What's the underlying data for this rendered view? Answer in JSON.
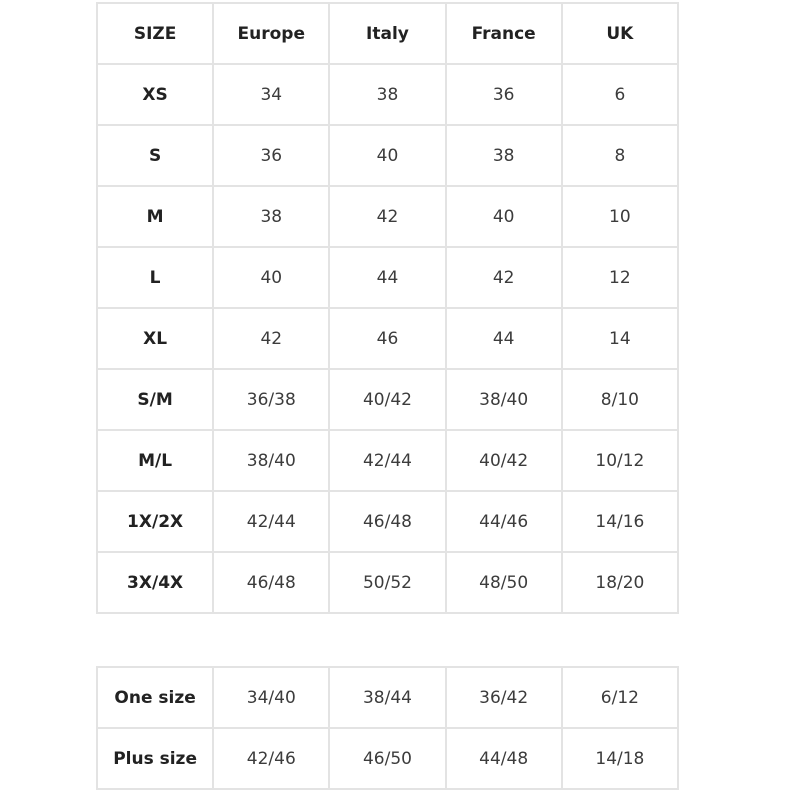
{
  "size_table": {
    "headers": [
      "SIZE",
      "Europe",
      "Italy",
      "France",
      "UK"
    ],
    "rows": [
      [
        "XS",
        "34",
        "38",
        "36",
        "6"
      ],
      [
        "S",
        "36",
        "40",
        "38",
        "8"
      ],
      [
        "M",
        "38",
        "42",
        "40",
        "10"
      ],
      [
        "L",
        "40",
        "44",
        "42",
        "12"
      ],
      [
        "XL",
        "42",
        "46",
        "44",
        "14"
      ],
      [
        "S/M",
        "36/38",
        "40/42",
        "38/40",
        "8/10"
      ],
      [
        "M/L",
        "38/40",
        "42/44",
        "40/42",
        "10/12"
      ],
      [
        "1X/2X",
        "42/44",
        "46/48",
        "44/46",
        "14/16"
      ],
      [
        "3X/4X",
        "46/48",
        "50/52",
        "48/50",
        "18/20"
      ]
    ]
  },
  "special_table": {
    "rows": [
      [
        "One size",
        "34/40",
        "38/44",
        "36/42",
        "6/12"
      ],
      [
        "Plus size",
        "42/46",
        "46/50",
        "44/48",
        "14/18"
      ]
    ]
  },
  "colors": {
    "border": "#e3e3e3",
    "header_text": "#222222",
    "body_text": "#3c3c3c"
  }
}
